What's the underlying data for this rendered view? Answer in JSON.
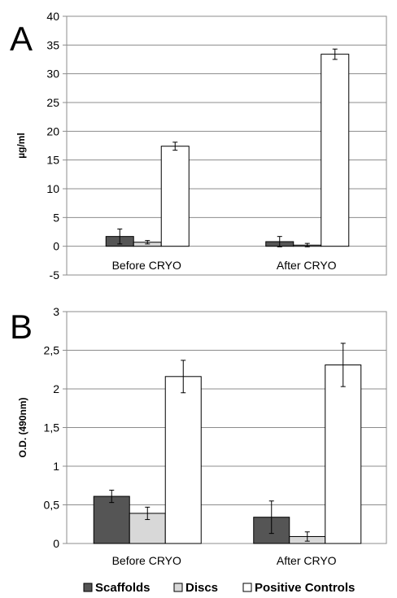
{
  "chart_data": [
    {
      "type": "bar",
      "panel_label": "A",
      "categories": [
        "Before CRYO",
        "After CRYO"
      ],
      "series": [
        {
          "name": "Scaffolds",
          "values": [
            1.7,
            0.8
          ],
          "errors": [
            1.3,
            0.9
          ]
        },
        {
          "name": "Discs",
          "values": [
            0.7,
            0.2
          ],
          "errors": [
            0.3,
            0.3
          ]
        },
        {
          "name": "Positive Controls",
          "values": [
            17.4,
            33.4
          ],
          "errors": [
            0.7,
            0.9
          ]
        }
      ],
      "ylabel": "µg/ml",
      "xlabel": "",
      "ylim": [
        -5,
        40
      ],
      "yticks": [
        "-5",
        "0",
        "5",
        "10",
        "15",
        "20",
        "25",
        "30",
        "35",
        "40"
      ],
      "ytick_values": [
        -5,
        0,
        5,
        10,
        15,
        20,
        25,
        30,
        35,
        40
      ],
      "grid": true
    },
    {
      "type": "bar",
      "panel_label": "B",
      "categories": [
        "Before CRYO",
        "After CRYO"
      ],
      "series": [
        {
          "name": "Scaffolds",
          "values": [
            0.61,
            0.34
          ],
          "errors": [
            0.08,
            0.21
          ]
        },
        {
          "name": "Discs",
          "values": [
            0.39,
            0.09
          ],
          "errors": [
            0.08,
            0.06
          ]
        },
        {
          "name": "Positive Controls",
          "values": [
            2.16,
            2.31
          ],
          "errors": [
            0.21,
            0.28
          ]
        }
      ],
      "ylabel": "O.D. (490nm)",
      "xlabel": "",
      "ylim": [
        0,
        3
      ],
      "yticks": [
        "0",
        "0,5",
        "1",
        "1,5",
        "2",
        "2,5",
        "3"
      ],
      "ytick_values": [
        0,
        0.5,
        1,
        1.5,
        2,
        2.5,
        3
      ],
      "grid": true
    }
  ],
  "legend": {
    "position": "bottom",
    "items": [
      {
        "label": "Scaffolds",
        "color": "#555555"
      },
      {
        "label": "Discs",
        "color": "#d8d8d8"
      },
      {
        "label": "Positive Controls",
        "color": "#ffffff"
      }
    ]
  },
  "colors": {
    "scaffolds": "#555555",
    "discs": "#d8d8d8",
    "positive_controls": "#ffffff",
    "grid": "#8c8c8c"
  }
}
